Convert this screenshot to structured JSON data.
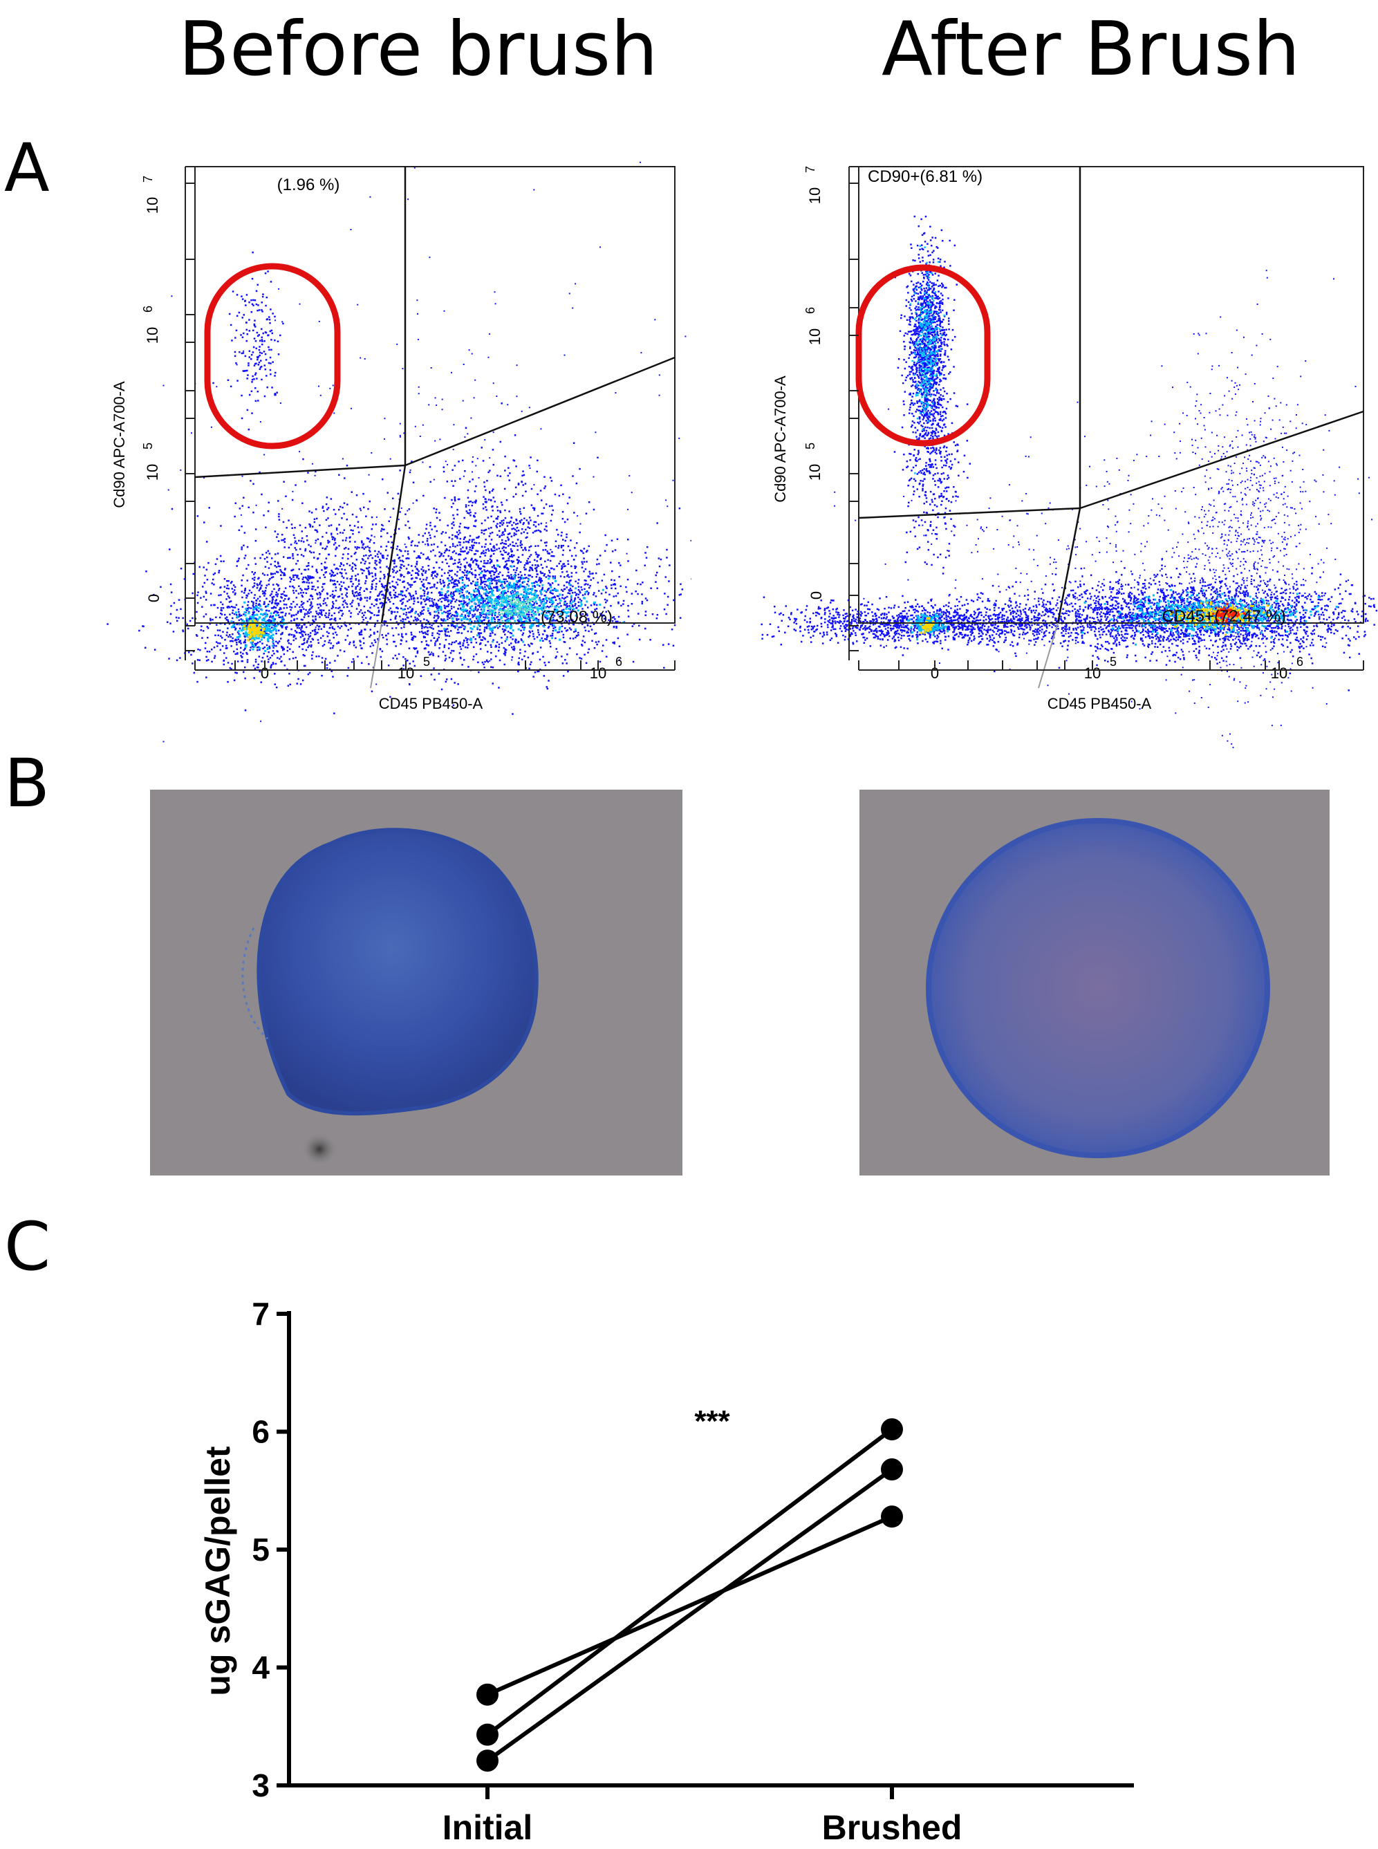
{
  "titles": {
    "before": "Before brush",
    "after": "After Brush"
  },
  "panels": {
    "a": "A",
    "b": "B",
    "c": "C"
  },
  "flow": [
    {
      "id": "before",
      "ylabel": "Cd90 APC-A700-A",
      "xlabel": "CD45 PB450-A",
      "yticks": [
        {
          "base": "10",
          "exp": "7"
        },
        {
          "base": "10",
          "exp": "6"
        },
        {
          "base": "10",
          "exp": "5"
        },
        {
          "base": "0",
          "exp": ""
        }
      ],
      "xticks": [
        {
          "base": "0",
          "exp": ""
        },
        {
          "base": "10",
          "exp": "5"
        },
        {
          "base": "10",
          "exp": "6"
        }
      ],
      "gate_top": "(1.96 %)",
      "gate_bottom": "(73.08 %)"
    },
    {
      "id": "after",
      "ylabel": "Cd90 APC-A700-A",
      "xlabel": "CD45 PB450-A",
      "yticks": [
        {
          "base": "10",
          "exp": "7"
        },
        {
          "base": "10",
          "exp": "6"
        },
        {
          "base": "10",
          "exp": "5"
        },
        {
          "base": "0",
          "exp": ""
        }
      ],
      "xticks": [
        {
          "base": "0",
          "exp": ""
        },
        {
          "base": "10",
          "exp": "5"
        },
        {
          "base": "10",
          "exp": "6"
        }
      ],
      "gate_top": "CD90+(6.81 %)",
      "gate_bottom": "CD45+(72.47 %)"
    }
  ],
  "colors": {
    "scatter_low": "#1010ff",
    "scatter_mid": "#00c0ff",
    "scatter_high": "#ffd800",
    "scatter_peak": "#ff2000",
    "gate_circle": "#e01010",
    "tissue": "#3a56b0",
    "background_slide": "#8e8a8d"
  },
  "chart_data": {
    "type": "line",
    "categories": [
      "Initial",
      "Brushed"
    ],
    "series": [
      {
        "values": [
          3.77,
          5.28
        ]
      },
      {
        "values": [
          3.43,
          6.02
        ]
      },
      {
        "values": [
          3.21,
          5.68
        ]
      }
    ],
    "ylabel": "ug sGAG/pellet",
    "ylim": [
      3,
      7
    ],
    "yticks": [
      "3",
      "4",
      "5",
      "6",
      "7"
    ],
    "annotation": "***"
  }
}
